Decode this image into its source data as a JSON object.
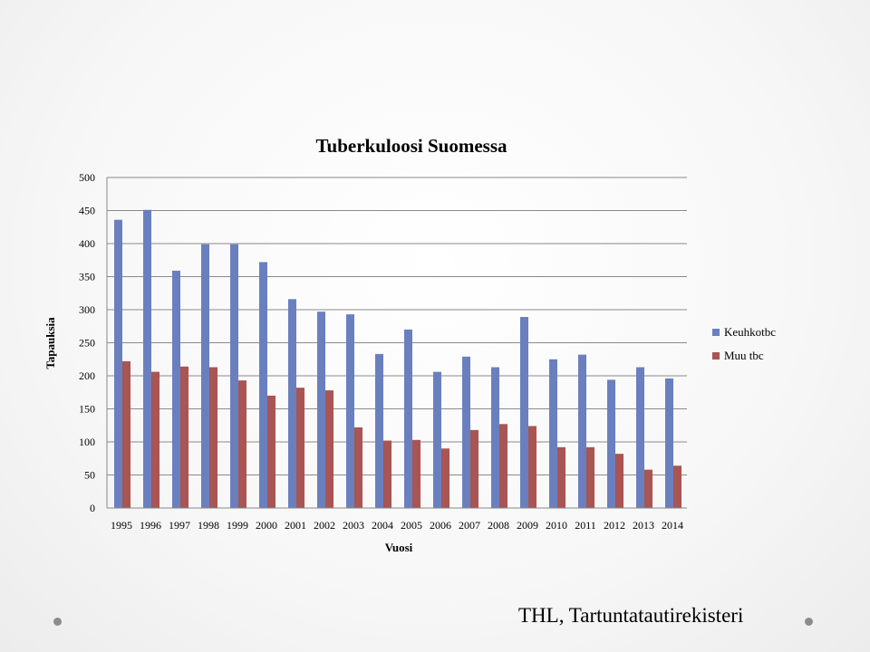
{
  "slide": {
    "source_text": "THL, Tartuntatautirekisteri"
  },
  "chart_data": {
    "type": "bar",
    "title": "Tuberkuloosi Suomessa",
    "xlabel": "Vuosi",
    "ylabel": "Tapauksia",
    "ylim": [
      0,
      500
    ],
    "yticks": [
      0,
      50,
      100,
      150,
      200,
      250,
      300,
      350,
      400,
      450,
      500
    ],
    "grid": true,
    "legend_position": "right",
    "categories": [
      "1995",
      "1996",
      "1997",
      "1998",
      "1999",
      "2000",
      "2001",
      "2002",
      "2003",
      "2004",
      "2005",
      "2006",
      "2007",
      "2008",
      "2009",
      "2010",
      "2011",
      "2012",
      "2013",
      "2014"
    ],
    "series": [
      {
        "name": "Keuhkotbc",
        "color": "#6a7fbe",
        "values": [
          436,
          451,
          359,
          399,
          399,
          372,
          316,
          297,
          293,
          233,
          270,
          206,
          229,
          213,
          289,
          225,
          232,
          194,
          213,
          196
        ]
      },
      {
        "name": "Muu tbc",
        "color": "#a85553",
        "values": [
          222,
          206,
          214,
          213,
          193,
          170,
          182,
          178,
          122,
          102,
          103,
          90,
          118,
          127,
          124,
          92,
          92,
          82,
          58,
          64
        ]
      }
    ]
  }
}
